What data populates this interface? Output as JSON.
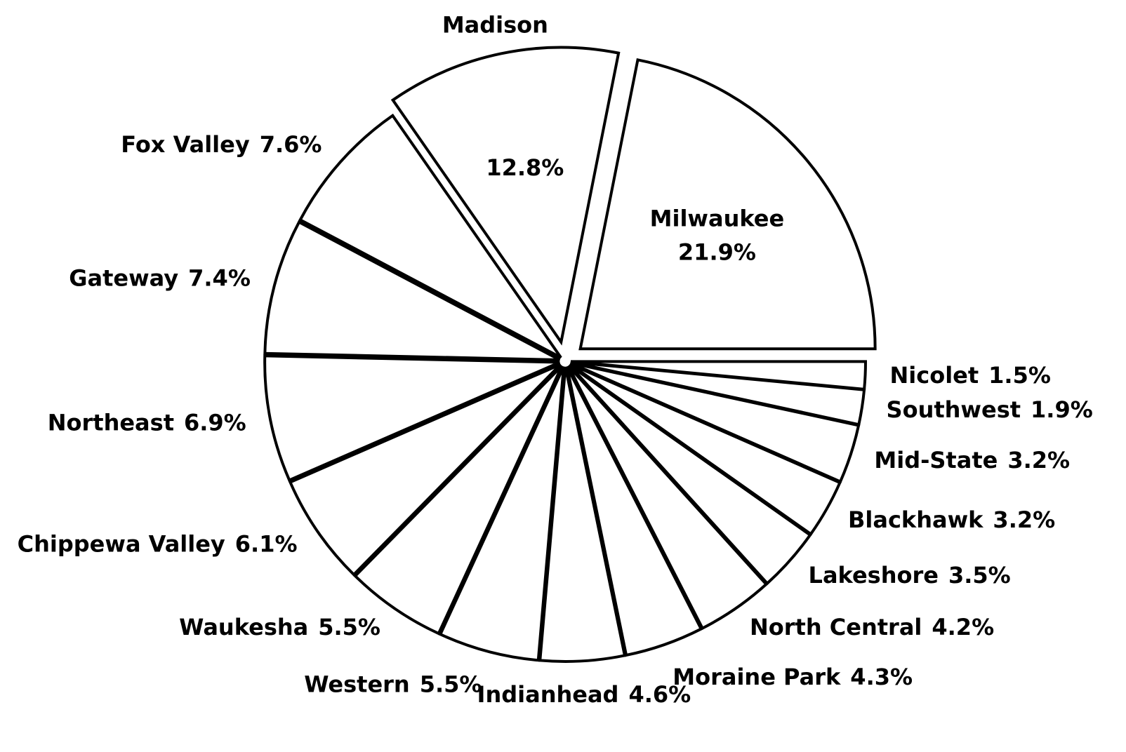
{
  "chart_data": {
    "type": "pie",
    "categories": [
      "Milwaukee",
      "Madison",
      "Fox Valley",
      "Gateway",
      "Northeast",
      "Chippewa Valley",
      "Waukesha",
      "Western",
      "Indianhead",
      "Moraine Park",
      "North Central",
      "Lakeshore",
      "Blackhawk",
      "Mid-State",
      "Southwest",
      "Nicolet"
    ],
    "values": [
      21.9,
      12.8,
      7.6,
      7.4,
      6.9,
      6.1,
      5.5,
      5.5,
      4.6,
      4.3,
      4.2,
      3.5,
      3.2,
      3.2,
      1.9,
      1.5
    ],
    "value_labels": [
      "21.9%",
      "12.8%",
      "7.6%",
      "7.4%",
      "6.9%",
      "6.1%",
      "5.5%",
      "5.5%",
      "4.6%",
      "4.3%",
      "4.2%",
      "3.5%",
      "3.2%",
      "3.2%",
      "1.9%",
      "1.5%"
    ],
    "color": "#ffffff"
  }
}
